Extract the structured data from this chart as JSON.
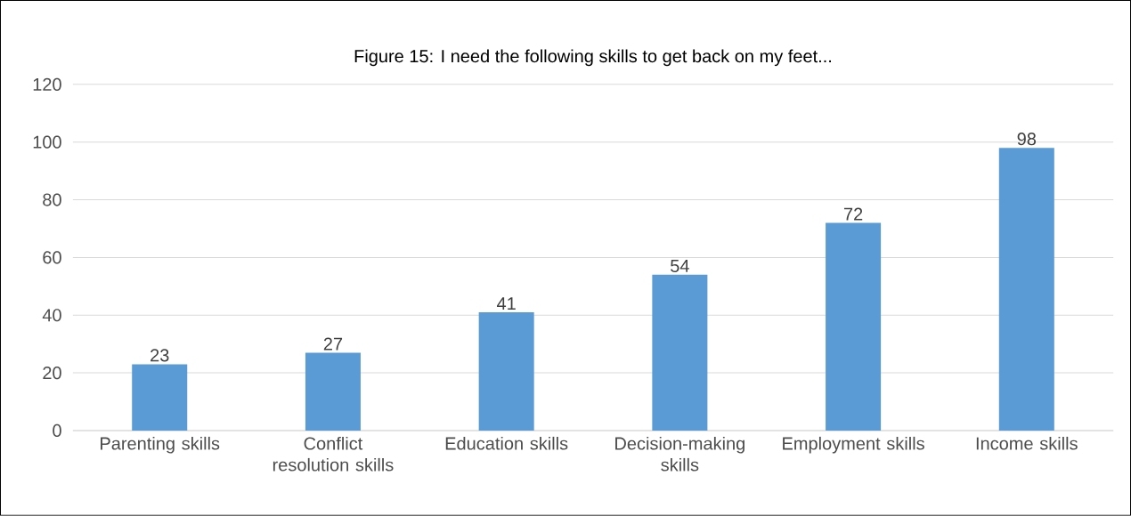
{
  "chart_data": {
    "type": "bar",
    "title": "Figure 15: I need the following skills to get back on my feet...",
    "categories": [
      "Parenting skills",
      "Conflict resolution skills",
      "Education skills",
      "Decision-making skills",
      "Employment skills",
      "Income skills"
    ],
    "values": [
      23,
      27,
      41,
      54,
      72,
      98
    ],
    "color": "#5b9bd5",
    "ylim": [
      0,
      120
    ],
    "yticks": [
      0,
      20,
      40,
      60,
      80,
      100,
      120
    ],
    "grid": "y",
    "data_labels": true
  }
}
